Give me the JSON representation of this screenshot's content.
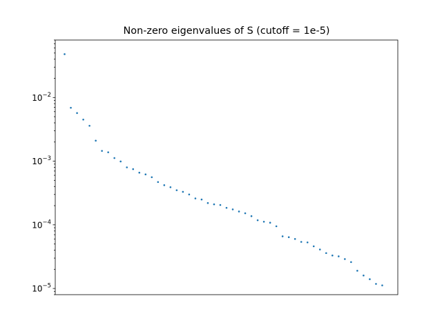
{
  "chart_data": {
    "type": "scatter",
    "title": "Non-zero eigenvalues of S (cutoff = 1e-5)",
    "xlabel": "",
    "ylabel": "",
    "yscale": "log",
    "ylim": [
      8e-06,
      0.08
    ],
    "xlim": [
      -1.5,
      53.5
    ],
    "grid": false,
    "x_ticks_visible": false,
    "y_ticks": [
      {
        "value": 0.01,
        "label": "10",
        "exp": "−2"
      },
      {
        "value": 0.001,
        "label": "10",
        "exp": "−3"
      },
      {
        "value": 0.0001,
        "label": "10",
        "exp": "−4"
      },
      {
        "value": 1e-05,
        "label": "10",
        "exp": "−5"
      }
    ],
    "marker_color": "#1f77b4",
    "series": [
      {
        "x": [
          0,
          1,
          2,
          3,
          4,
          5,
          6,
          7,
          8,
          9,
          10,
          11,
          12,
          13,
          14,
          15,
          16,
          17,
          18,
          19,
          20,
          21,
          22,
          23,
          24,
          25,
          26,
          27,
          28,
          29,
          30,
          31,
          32,
          33,
          34,
          35,
          36,
          37,
          38,
          39,
          40,
          41,
          42,
          43,
          44,
          45,
          46,
          47,
          48,
          49,
          50,
          51
        ],
        "values": [
          0.048,
          0.0069,
          0.0057,
          0.0045,
          0.0036,
          0.0021,
          0.00145,
          0.00138,
          0.00112,
          0.00099,
          0.0008,
          0.00075,
          0.00066,
          0.00062,
          0.00056,
          0.00047,
          0.00042,
          0.00039,
          0.00035,
          0.00033,
          0.0003,
          0.00026,
          0.00025,
          0.00022,
          0.00021,
          0.000205,
          0.000185,
          0.000175,
          0.000162,
          0.000152,
          0.000137,
          0.000118,
          0.000112,
          0.000108,
          9.5e-05,
          6.6e-05,
          6.4e-05,
          6e-05,
          5.4e-05,
          5.3e-05,
          4.6e-05,
          4.1e-05,
          3.6e-05,
          3.3e-05,
          3.2e-05,
          2.9e-05,
          2.6e-05,
          1.9e-05,
          1.6e-05,
          1.4e-05,
          1.18e-05,
          1.12e-05
        ]
      }
    ]
  }
}
